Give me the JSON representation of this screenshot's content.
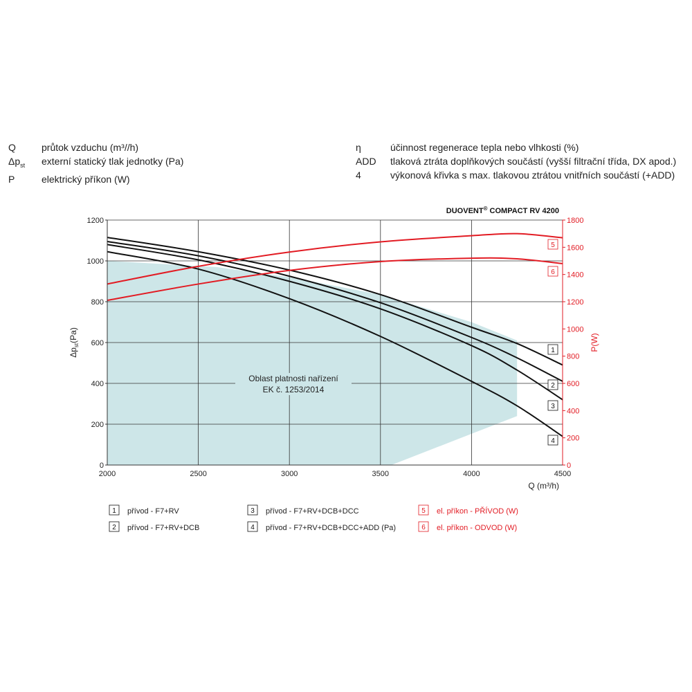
{
  "glossary": {
    "left": [
      {
        "symbol": "Q",
        "sub": "",
        "text": "průtok vzduchu (m³//h)"
      },
      {
        "symbol": "Δp",
        "sub": "st",
        "text": "externí statický tlak jednotky (Pa)"
      },
      {
        "symbol": "P",
        "sub": "",
        "text": "elektrický příkon (W)"
      }
    ],
    "right": [
      {
        "symbol": "η",
        "sub": "",
        "text": "účinnost regenerace tepla nebo vlhkosti (%)"
      },
      {
        "symbol": "ADD",
        "sub": "",
        "text": "tlaková ztráta doplňkových součástí (vyšší filtrační třída, DX apod.)"
      },
      {
        "symbol": "4",
        "sub": "",
        "text": "výkonová křivka s max. tlakovou ztrátou vnitřních součástí (+ADD)"
      }
    ]
  },
  "chart_data": {
    "type": "line",
    "title": "DUOVENT® COMPACT RV 4200",
    "xlabel": "Q (m³/h)",
    "ylabel": "Δp",
    "ylabel_sub": "st",
    "ylabel_unit": "(Pa)",
    "y2label": "P(W)",
    "xlim": [
      2000,
      4500
    ],
    "ylim": [
      0,
      1200
    ],
    "y2lim": [
      0,
      1800
    ],
    "xticks": [
      2000,
      2500,
      3000,
      3500,
      4000,
      4500
    ],
    "yticks": [
      0,
      200,
      400,
      600,
      800,
      1000,
      1200
    ],
    "y2ticks": [
      0,
      200,
      400,
      600,
      800,
      1000,
      1200,
      1400,
      1600,
      1800
    ],
    "region_label": [
      "Oblast platnosti nařízení",
      "EK č. 1253/2014"
    ],
    "region": [
      [
        2000,
        1000
      ],
      [
        2600,
        970
      ],
      [
        3000,
        920
      ],
      [
        3500,
        835
      ],
      [
        4000,
        700
      ],
      [
        4250,
        610
      ],
      [
        4250,
        240
      ],
      [
        3560,
        0
      ],
      [
        2000,
        0
      ]
    ],
    "series": [
      {
        "tag": "1",
        "axis": "left",
        "color": "#111111",
        "x": [
          2000,
          2500,
          3000,
          3500,
          4000,
          4250,
          4500
        ],
        "y": [
          1115,
          1045,
          955,
          835,
          675,
          595,
          490
        ]
      },
      {
        "tag": "2",
        "axis": "left",
        "color": "#111111",
        "x": [
          2000,
          2500,
          3000,
          3500,
          4000,
          4250,
          4500
        ],
        "y": [
          1095,
          1025,
          925,
          795,
          625,
          525,
          410
        ]
      },
      {
        "tag": "3",
        "axis": "left",
        "color": "#111111",
        "x": [
          2000,
          2500,
          3000,
          3500,
          4000,
          4250,
          4500
        ],
        "y": [
          1080,
          1005,
          900,
          765,
          585,
          465,
          320
        ]
      },
      {
        "tag": "4",
        "axis": "left",
        "color": "#111111",
        "x": [
          2000,
          2500,
          3000,
          3500,
          4000,
          4250,
          4500
        ],
        "y": [
          1045,
          960,
          815,
          630,
          410,
          290,
          140
        ]
      },
      {
        "tag": "5",
        "axis": "right",
        "color": "#e21b23",
        "x": [
          2000,
          2500,
          3000,
          3500,
          4000,
          4250,
          4500
        ],
        "y": [
          1330,
          1460,
          1565,
          1640,
          1685,
          1700,
          1670
        ]
      },
      {
        "tag": "6",
        "axis": "right",
        "color": "#e21b23",
        "x": [
          2000,
          2500,
          3000,
          3500,
          4000,
          4250,
          4500
        ],
        "y": [
          1210,
          1330,
          1430,
          1495,
          1520,
          1515,
          1480
        ]
      }
    ],
    "legend": [
      {
        "tag": "1",
        "label": "přívod - F7+RV",
        "color": "#111111"
      },
      {
        "tag": "2",
        "label": "přívod - F7+RV+DCB",
        "color": "#111111"
      },
      {
        "tag": "3",
        "label": "přívod - F7+RV+DCB+DCC",
        "color": "#111111"
      },
      {
        "tag": "4",
        "label": "přívod - F7+RV+DCB+DCC+ADD (Pa)",
        "color": "#111111"
      },
      {
        "tag": "5",
        "label": "el. příkon - PŘÍVOD (W)",
        "color": "#e21b23"
      },
      {
        "tag": "6",
        "label": "el. příkon - ODVOD (W)",
        "color": "#e21b23"
      }
    ],
    "grid": true,
    "region_color": "#cde6e8"
  }
}
